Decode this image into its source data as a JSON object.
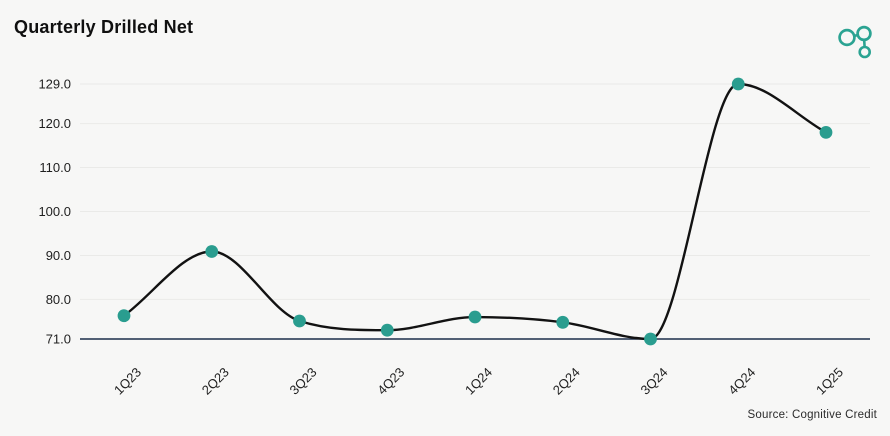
{
  "header": {
    "title": "Quarterly Drilled Net"
  },
  "logo": {
    "name": "cognitive-credit-logo",
    "color": "#2ba392"
  },
  "chart_data": {
    "type": "line",
    "title": "Quarterly Drilled Net",
    "categories": [
      "1Q23",
      "2Q23",
      "3Q23",
      "4Q23",
      "1Q24",
      "2Q24",
      "3Q24",
      "4Q24",
      "1Q25"
    ],
    "values": [
      76.3,
      90.9,
      75.1,
      73.0,
      76.0,
      74.8,
      71.0,
      129.0,
      118.0
    ],
    "xlabel": "",
    "ylabel": "",
    "ylim": [
      71.0,
      129.0
    ],
    "y_ticks": [
      129.0,
      120.0,
      110.0,
      100.0,
      90.0,
      80.0,
      71.0
    ],
    "x_tick_rotation_deg": -45,
    "grid": "horizontal",
    "legend_position": "none",
    "line_color": "#121212",
    "marker_color": "#2a9d8f",
    "axis_line_color": "#1c2e4a",
    "grid_color": "#eaeae8",
    "tick_label_color": "#1f1f1f"
  },
  "footer": {
    "source": "Source: Cognitive Credit"
  }
}
